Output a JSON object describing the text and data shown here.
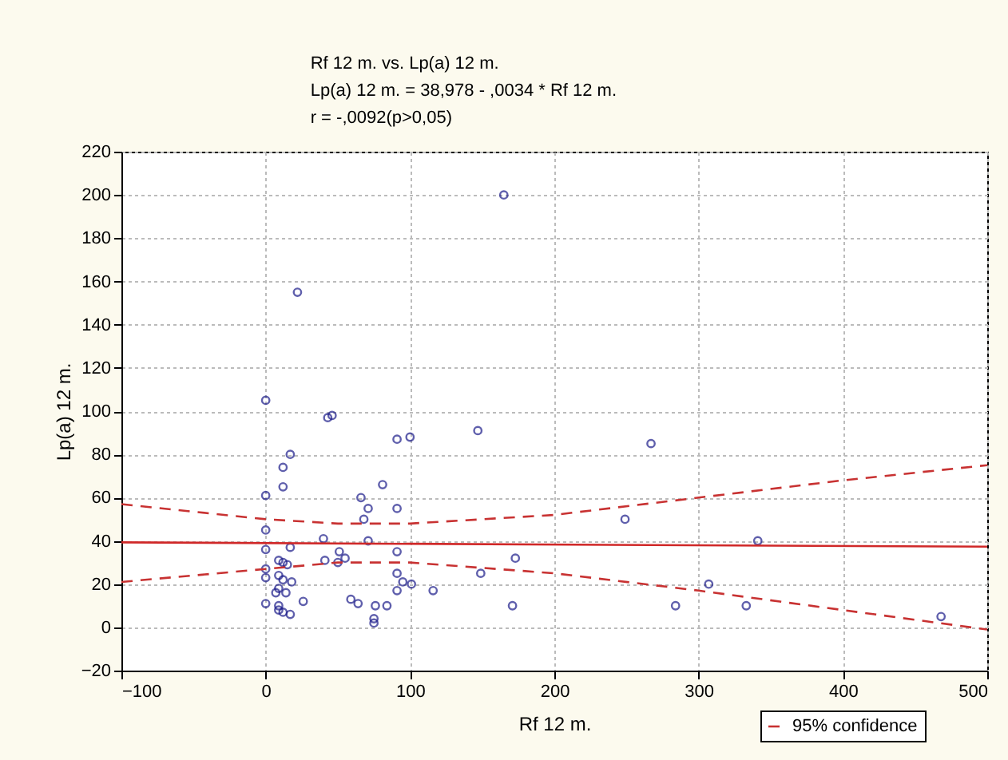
{
  "chart_data": {
    "type": "scatter",
    "title": "Rf 12 m. vs. Lp(a)  12 m.",
    "annotations": [
      "Lp(a)  12 m. = 38,978 - ,0034  * Rf 12 m.",
      "r = -,0092(p>0,05)"
    ],
    "xlabel": "Rf 12 m.",
    "ylabel": "Lp(a)  12 m.",
    "xlim": [
      -100,
      500
    ],
    "xticks": [
      -100,
      0,
      100,
      200,
      300,
      400,
      500
    ],
    "ylim": [
      -20,
      220
    ],
    "yticks": [
      -20,
      0,
      20,
      40,
      60,
      80,
      100,
      120,
      140,
      160,
      180,
      200,
      220
    ],
    "grid": true,
    "legend": "bottom right",
    "series": [
      {
        "marker": "circle",
        "color": "#1c1c8a",
        "x": [
          22,
          0,
          43,
          46,
          91,
          100,
          147,
          17,
          12,
          12,
          81,
          0,
          66,
          71,
          91,
          68,
          0,
          40,
          71,
          0,
          17,
          91,
          51,
          9,
          41,
          55,
          50,
          12,
          15,
          0,
          9,
          91,
          12,
          18,
          0,
          95,
          101,
          9,
          7,
          14,
          91,
          116,
          0,
          26,
          59,
          64,
          76,
          84,
          9,
          12,
          9,
          17,
          75,
          75,
          149,
          173,
          171,
          165,
          267,
          249,
          341,
          284,
          307,
          333,
          468
        ],
        "values": [
          155,
          105,
          97,
          98,
          87,
          88,
          91,
          80,
          74,
          65,
          66,
          61,
          60,
          55,
          55,
          50,
          45,
          41,
          40,
          36,
          37,
          35,
          35,
          31,
          31,
          32,
          30,
          30,
          29,
          27,
          24,
          25,
          22,
          21,
          23,
          21,
          20,
          18,
          16,
          16,
          17,
          17,
          11,
          12,
          13,
          11,
          10,
          10,
          10,
          7,
          8,
          6,
          4,
          2,
          25,
          32,
          10,
          200,
          85,
          50,
          40,
          10,
          20,
          10,
          5
        ]
      },
      {
        "type": "line",
        "line_style": "solid",
        "color": "#d02828",
        "x": [
          -100,
          500
        ],
        "values": [
          39.3,
          37.3
        ]
      },
      {
        "type": "line",
        "line_style": "dashed",
        "color": "#c83232",
        "name": "95% confidence",
        "x": [
          -100,
          0,
          50,
          100,
          200,
          300,
          400,
          500
        ],
        "values": [
          57,
          50,
          48,
          48,
          52,
          60,
          68,
          75
        ]
      },
      {
        "type": "line",
        "line_style": "dashed",
        "color": "#c83232",
        "x": [
          -100,
          0,
          50,
          100,
          200,
          300,
          400,
          500
        ],
        "values": [
          21,
          27,
          30,
          30,
          25,
          17,
          8,
          -1
        ]
      }
    ]
  }
}
